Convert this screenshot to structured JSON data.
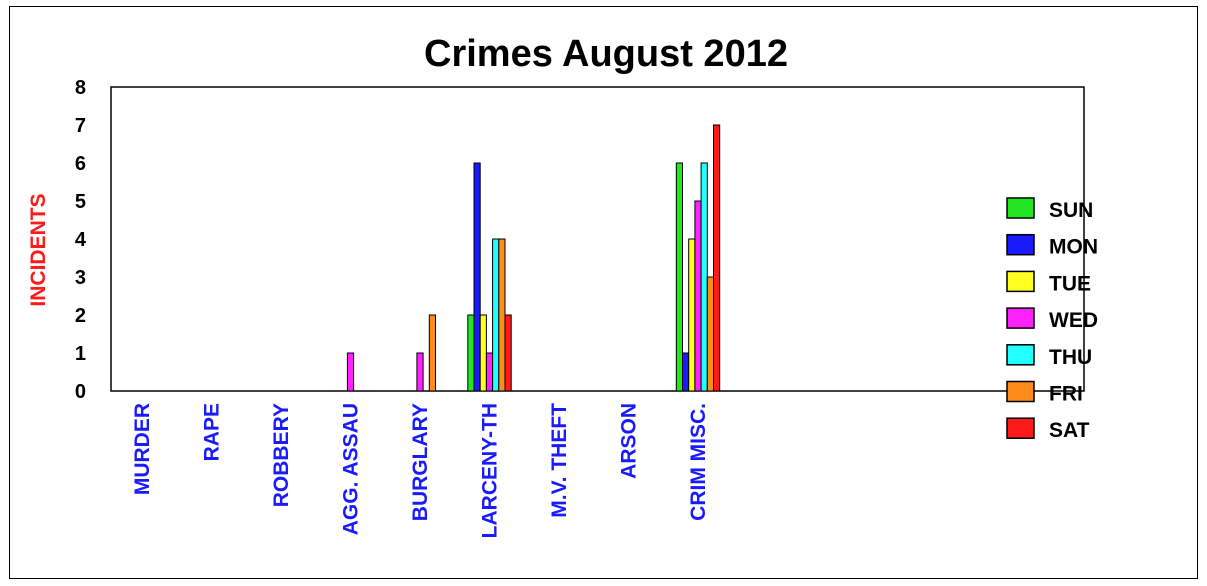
{
  "chart_data": {
    "type": "bar",
    "title": "Crimes August 2012",
    "ylabel": "INCIDENTS",
    "xlabel": "",
    "ylim": [
      0,
      8
    ],
    "yticks": [
      0,
      1,
      2,
      3,
      4,
      5,
      6,
      7,
      8
    ],
    "grid": false,
    "legend_position": "right",
    "categories": [
      "MURDER",
      "RAPE",
      "ROBBERY",
      "AGG. ASSAU",
      "BURGLARY",
      "LARCENY-TH",
      "M.V. THEFT",
      "ARSON",
      "CRIM MISC."
    ],
    "series": [
      {
        "name": "SUN",
        "color": "#22e622",
        "values": [
          0,
          0,
          0,
          0,
          0,
          2,
          0,
          0,
          6
        ]
      },
      {
        "name": "MON",
        "color": "#1a1aff",
        "values": [
          0,
          0,
          0,
          0,
          0,
          6,
          0,
          0,
          1
        ]
      },
      {
        "name": "TUE",
        "color": "#ffff22",
        "values": [
          0,
          0,
          0,
          0,
          0,
          2,
          0,
          0,
          4
        ]
      },
      {
        "name": "WED",
        "color": "#ff22ff",
        "values": [
          0,
          0,
          0,
          1,
          1,
          1,
          0,
          0,
          5
        ]
      },
      {
        "name": "THU",
        "color": "#22ffff",
        "values": [
          0,
          0,
          0,
          0,
          0,
          4,
          0,
          0,
          6
        ]
      },
      {
        "name": "FRI",
        "color": "#ff8c1a",
        "values": [
          0,
          0,
          0,
          0,
          2,
          4,
          0,
          0,
          3
        ]
      },
      {
        "name": "SAT",
        "color": "#ff1a1a",
        "values": [
          0,
          0,
          0,
          0,
          0,
          2,
          0,
          0,
          7
        ]
      }
    ]
  }
}
